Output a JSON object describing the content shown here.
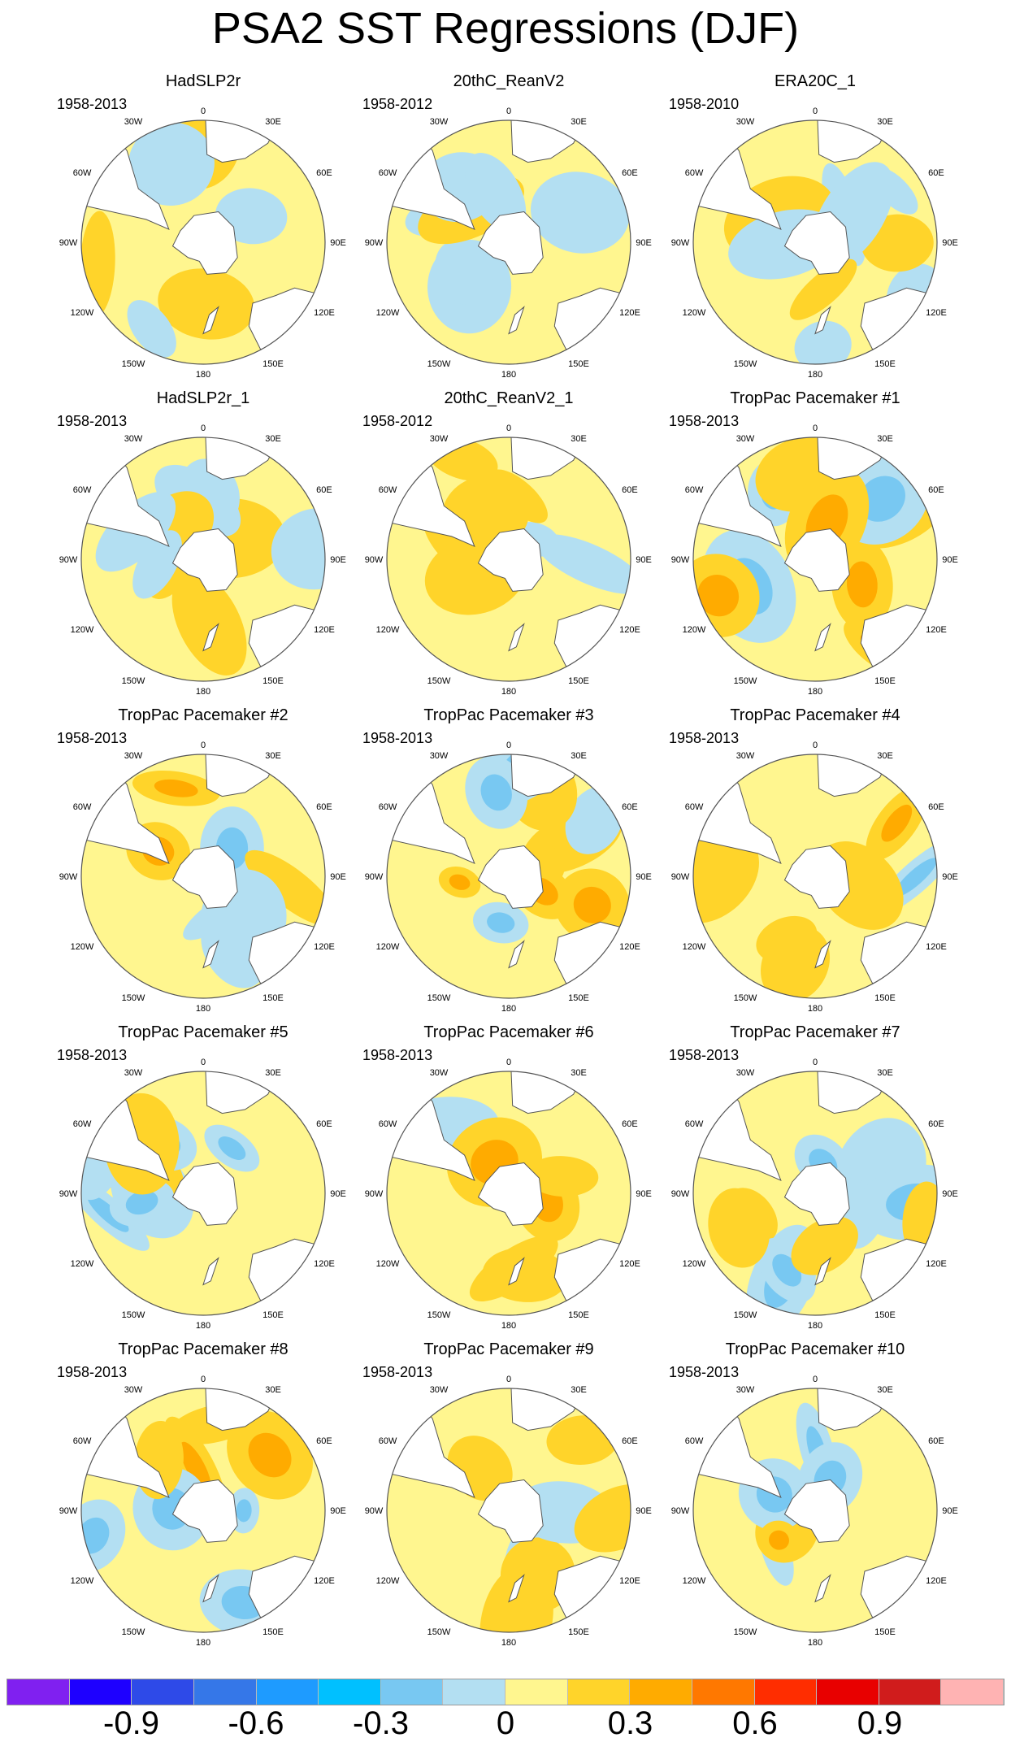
{
  "chart_data": {
    "type": "heatmap",
    "title": "PSA2 SST Regressions (DJF)",
    "projection": "south polar stereographic",
    "longitude_labels": [
      "0",
      "30E",
      "60E",
      "90E",
      "120E",
      "150E",
      "180",
      "150W",
      "120W",
      "90W",
      "60W",
      "30W"
    ],
    "panels": [
      {
        "title": "HadSLP2r",
        "period": "1958-2013"
      },
      {
        "title": "20thC_ReanV2",
        "period": "1958-2012"
      },
      {
        "title": "ERA20C_1",
        "period": "1958-2010"
      },
      {
        "title": "HadSLP2r_1",
        "period": "1958-2013"
      },
      {
        "title": "20thC_ReanV2_1",
        "period": "1958-2012"
      },
      {
        "title": "TropPac Pacemaker #1",
        "period": "1958-2013"
      },
      {
        "title": "TropPac Pacemaker #2",
        "period": "1958-2013"
      },
      {
        "title": "TropPac Pacemaker #3",
        "period": "1958-2013"
      },
      {
        "title": "TropPac Pacemaker #4",
        "period": "1958-2013"
      },
      {
        "title": "TropPac Pacemaker #5",
        "period": "1958-2013"
      },
      {
        "title": "TropPac Pacemaker #6",
        "period": "1958-2013"
      },
      {
        "title": "TropPac Pacemaker #7",
        "period": "1958-2013"
      },
      {
        "title": "TropPac Pacemaker #8",
        "period": "1958-2013"
      },
      {
        "title": "TropPac Pacemaker #9",
        "period": "1958-2013"
      },
      {
        "title": "TropPac Pacemaker #10",
        "period": "1958-2013"
      }
    ],
    "colorbar": {
      "colors": [
        "#8020f0",
        "#1e00ff",
        "#2e4ae8",
        "#3577e8",
        "#1e9bff",
        "#00c0ff",
        "#78c8f2",
        "#b3dff2",
        "#fff68f",
        "#ffd42a",
        "#ffab00",
        "#ff7800",
        "#ff2d00",
        "#e80000",
        "#d01c1c",
        "#ffb3b3"
      ],
      "tick_labels": [
        "-0.9",
        "-0.6",
        "-0.3",
        "0",
        "0.3",
        "0.6",
        "0.9"
      ],
      "tick_values": [
        -0.9,
        -0.6,
        -0.3,
        0,
        0.3,
        0.6,
        0.9
      ],
      "interval": 0.15
    }
  }
}
